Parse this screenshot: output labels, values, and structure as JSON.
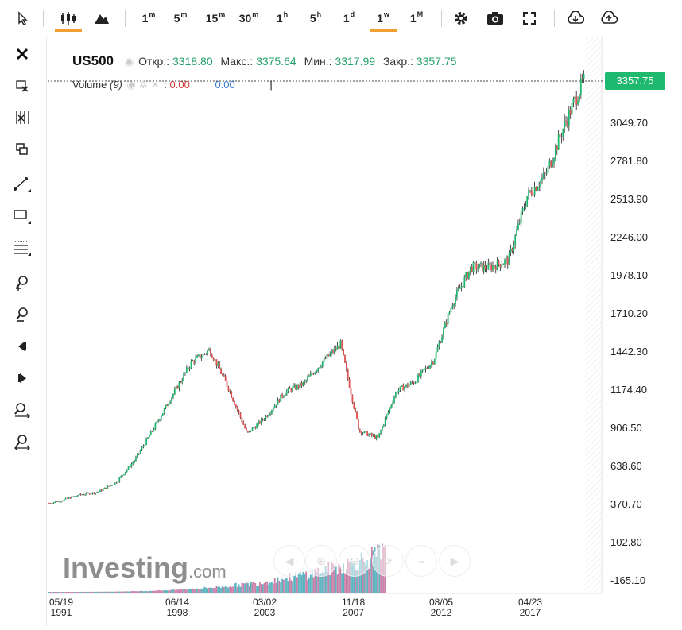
{
  "toolbar": {
    "intervals": [
      {
        "num": "1",
        "sup": "m"
      },
      {
        "num": "5",
        "sup": "m"
      },
      {
        "num": "15",
        "sup": "m"
      },
      {
        "num": "30",
        "sup": "m"
      },
      {
        "num": "1",
        "sup": "h"
      },
      {
        "num": "5",
        "sup": "h"
      },
      {
        "num": "1",
        "sup": "d"
      },
      {
        "num": "1",
        "sup": "w"
      },
      {
        "num": "1",
        "sup": "M"
      }
    ],
    "active_interval": "1w",
    "icons": [
      "cursor-icon",
      "candlestick-icon",
      "mountain-icon",
      "gear-icon",
      "camera-icon",
      "fullscreen-icon",
      "download-icon",
      "upload-icon"
    ]
  },
  "left_tools": [
    "close-icon",
    "remove-drawings-icon",
    "crosshair-icon",
    "copy-icon",
    "trendline-icon",
    "rectangle-icon",
    "fibonacci-icon",
    "zoom-in-icon",
    "zoom-out-icon",
    "scroll-left-icon",
    "scroll-right-icon",
    "zoom-fit-in-icon",
    "zoom-fit-out-icon"
  ],
  "legend": {
    "symbol": "US500",
    "open_label": "Откр.:",
    "open": "3318.80",
    "high_label": "Макс.:",
    "high": "3375.64",
    "low_label": "Мин.:",
    "low": "3317.99",
    "close_label": "Закр.:",
    "close": "3357.75",
    "volume_label": "Volume",
    "volume_period": "(9)",
    "volume_v1": "0.00",
    "volume_v2": "0.00",
    "volume_v1_color": "#d43a3a",
    "volume_v2_color": "#3a7bd5"
  },
  "price_tag": "3357.75",
  "y_ticks": [
    "3049.70",
    "2781.80",
    "2513.90",
    "2246.00",
    "1978.10",
    "1710.20",
    "1442.30",
    "1174.40",
    "906.50",
    "638.60",
    "370.70",
    "102.80",
    "-165.10"
  ],
  "x_ticks": [
    {
      "date": "05/19",
      "year": "1991"
    },
    {
      "date": "06/14",
      "year": "1998"
    },
    {
      "date": "03/02",
      "year": "2003"
    },
    {
      "date": "11/18",
      "year": "2007"
    },
    {
      "date": "08/05",
      "year": "2012"
    },
    {
      "date": "04/23",
      "year": "2017"
    }
  ],
  "logo": {
    "main": "Investing",
    "suffix": ".com"
  },
  "colors": {
    "up": "#1fb86f",
    "down": "#e0504f",
    "wick": "#222222",
    "tag": "#1fb86f"
  },
  "chart_data": {
    "type": "line",
    "x": [
      1991,
      1992,
      1993,
      1994,
      1995,
      1996,
      1997,
      1998,
      1999,
      2000,
      2001,
      2002,
      2003,
      2004,
      2005,
      2006,
      2007,
      2008,
      2009,
      2010,
      2011,
      2012,
      2013,
      2014,
      2015,
      2016,
      2017,
      2018,
      2019,
      2020
    ],
    "values": [
      380,
      410,
      450,
      470,
      540,
      700,
      920,
      1150,
      1380,
      1470,
      1200,
      880,
      1000,
      1170,
      1230,
      1380,
      1510,
      900,
      850,
      1180,
      1250,
      1400,
      1800,
      2050,
      2050,
      2100,
      2550,
      2700,
      3050,
      3357
    ],
    "ylim": [
      -165.1,
      3400
    ]
  }
}
